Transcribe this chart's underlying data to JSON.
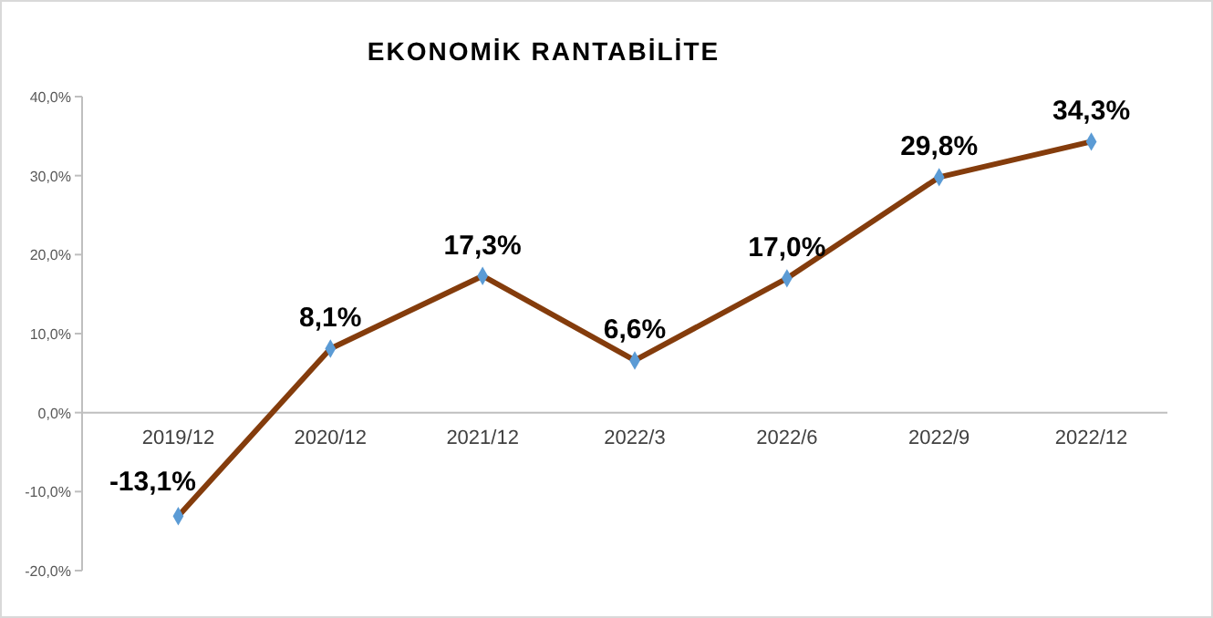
{
  "chart_data": {
    "type": "line",
    "title": "EKONOMİK RANTABİLİTE",
    "categories": [
      "2019/12",
      "2020/12",
      "2021/12",
      "2022/3",
      "2022/6",
      "2022/9",
      "2022/12"
    ],
    "series": [
      {
        "color": "#843c0c",
        "colors": [
          "#5b9bd5",
          "#5b9bd5",
          "#5b9bd5",
          "#5b9bd5",
          "#5b9bd5",
          "#5b9bd5",
          "#5b9bd5"
        ],
        "values": [
          -13.1,
          8.1,
          17.3,
          6.6,
          17.0,
          29.8,
          34.3
        ],
        "value_labels": [
          "-13,1%",
          "8,1%",
          "17,3%",
          "6,6%",
          "17,0%",
          "29,8%",
          "34,3%"
        ]
      }
    ],
    "ylim": [
      -20,
      40
    ],
    "yticks": [
      {
        "value": -20,
        "label": "-20,0%"
      },
      {
        "value": -10,
        "label": "-10,0%"
      },
      {
        "value": 0,
        "label": "0,0%"
      },
      {
        "value": 10,
        "label": "10,0%"
      },
      {
        "value": 20,
        "label": "20,0%"
      },
      {
        "value": 30,
        "label": "30,0%"
      },
      {
        "value": 40,
        "label": "40,0%"
      }
    ],
    "grid": false,
    "marker": "diamond",
    "line_style": "solid"
  }
}
